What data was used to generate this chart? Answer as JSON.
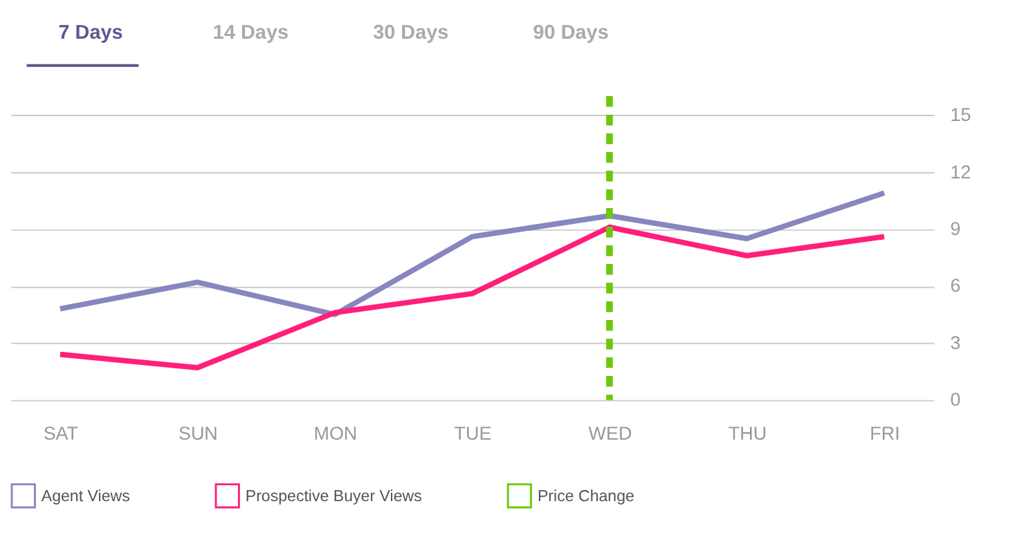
{
  "chart_data": {
    "type": "line",
    "annotations": [
      "7 Days",
      "14 Days",
      "30 Days",
      "90 Days"
    ],
    "categories": [
      "SAT",
      "SUN",
      "MON",
      "TUE",
      "WED",
      "THU",
      "FRI"
    ],
    "series": [
      {
        "name": "Agent Views",
        "color": "#8886bf",
        "values": [
          4.8,
          6.2,
          4.5,
          8.6,
          9.7,
          8.5,
          10.9
        ]
      },
      {
        "name": "Prospective Buyer Views",
        "color": "#ff1f7a",
        "values": [
          2.4,
          1.7,
          4.6,
          5.6,
          9.1,
          7.6,
          8.6
        ]
      }
    ],
    "ref_lines": [
      {
        "axis": "x",
        "value": "WED",
        "label": "Price Change",
        "color": "#6cc80c",
        "line_style": "dashed"
      }
    ],
    "ylim": [
      0,
      16
    ],
    "yticks": [
      0,
      3,
      6,
      9,
      12,
      15
    ],
    "grid": "y",
    "legend": "bottom",
    "marker": "none",
    "line_style": "solid"
  }
}
